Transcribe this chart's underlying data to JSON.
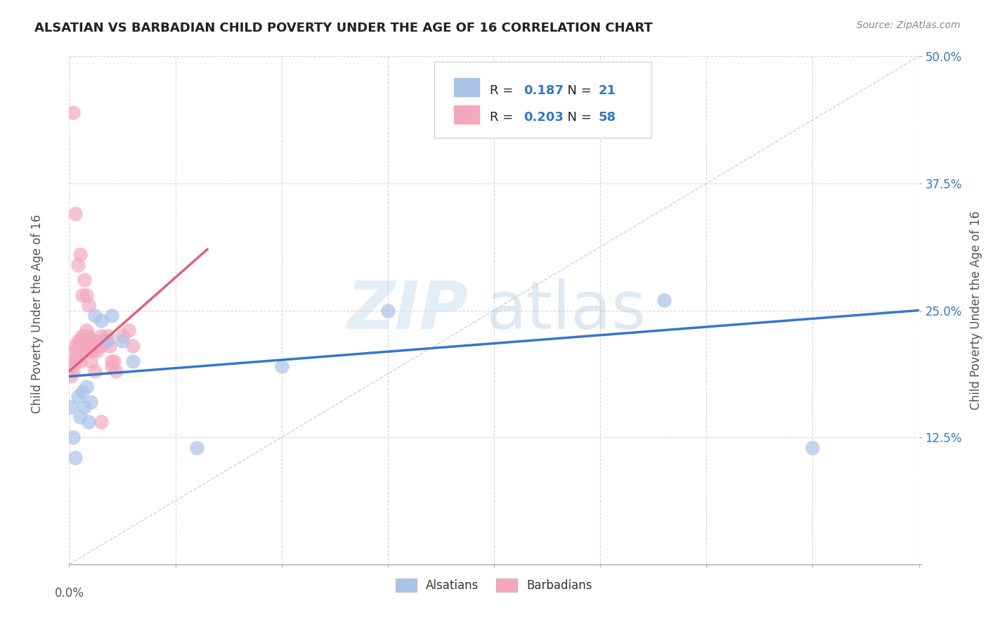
{
  "title": "ALSATIAN VS BARBADIAN CHILD POVERTY UNDER THE AGE OF 16 CORRELATION CHART",
  "source": "Source: ZipAtlas.com",
  "ylabel": "Child Poverty Under the Age of 16",
  "xlim": [
    0.0,
    0.4
  ],
  "ylim": [
    0.0,
    0.5
  ],
  "xticks": [
    0.0,
    0.05,
    0.1,
    0.15,
    0.2,
    0.25,
    0.3,
    0.35,
    0.4
  ],
  "yticks": [
    0.0,
    0.125,
    0.25,
    0.375,
    0.5
  ],
  "alsatian_r": 0.187,
  "alsatian_n": 21,
  "barbadian_r": 0.203,
  "barbadian_n": 58,
  "alsatian_color": "#aac4e8",
  "barbadian_color": "#f4a8be",
  "alsatian_line_color": "#3377cc",
  "barbadian_line_color": "#e06080",
  "diagonal_color": "#cccccc",
  "watermark_zip": "ZIP",
  "watermark_atlas": "atlas",
  "background_color": "#ffffff",
  "alsatian_x": [
    0.001,
    0.002,
    0.003,
    0.004,
    0.005,
    0.006,
    0.007,
    0.008,
    0.009,
    0.01,
    0.012,
    0.015,
    0.018,
    0.02,
    0.025,
    0.03,
    0.06,
    0.1,
    0.15,
    0.28,
    0.35
  ],
  "alsatian_y": [
    0.155,
    0.125,
    0.105,
    0.165,
    0.145,
    0.17,
    0.155,
    0.175,
    0.14,
    0.16,
    0.245,
    0.24,
    0.22,
    0.245,
    0.22,
    0.2,
    0.115,
    0.195,
    0.25,
    0.26,
    0.115
  ],
  "barbadian_x": [
    0.001,
    0.001,
    0.002,
    0.002,
    0.003,
    0.003,
    0.003,
    0.004,
    0.004,
    0.004,
    0.005,
    0.005,
    0.005,
    0.006,
    0.006,
    0.006,
    0.007,
    0.007,
    0.007,
    0.008,
    0.008,
    0.008,
    0.009,
    0.009,
    0.01,
    0.01,
    0.01,
    0.011,
    0.011,
    0.012,
    0.012,
    0.013,
    0.013,
    0.014,
    0.015,
    0.015,
    0.016,
    0.017,
    0.018,
    0.019,
    0.02,
    0.021,
    0.022,
    0.025,
    0.028,
    0.03,
    0.002,
    0.003,
    0.004,
    0.005,
    0.006,
    0.007,
    0.008,
    0.009,
    0.01,
    0.012,
    0.015,
    0.02
  ],
  "barbadian_y": [
    0.195,
    0.185,
    0.2,
    0.19,
    0.2,
    0.21,
    0.215,
    0.205,
    0.21,
    0.22,
    0.215,
    0.22,
    0.2,
    0.215,
    0.22,
    0.225,
    0.22,
    0.225,
    0.22,
    0.215,
    0.225,
    0.23,
    0.215,
    0.225,
    0.21,
    0.22,
    0.2,
    0.21,
    0.215,
    0.215,
    0.22,
    0.22,
    0.21,
    0.215,
    0.215,
    0.225,
    0.22,
    0.22,
    0.225,
    0.215,
    0.2,
    0.2,
    0.19,
    0.225,
    0.23,
    0.215,
    0.445,
    0.345,
    0.295,
    0.305,
    0.265,
    0.28,
    0.265,
    0.255,
    0.22,
    0.19,
    0.14,
    0.195
  ],
  "alsatian_trendline_x": [
    0.0,
    0.4
  ],
  "alsatian_trendline_y": [
    0.185,
    0.25
  ],
  "barbadian_trendline_x": [
    0.0,
    0.065
  ],
  "barbadian_trendline_y": [
    0.19,
    0.31
  ]
}
